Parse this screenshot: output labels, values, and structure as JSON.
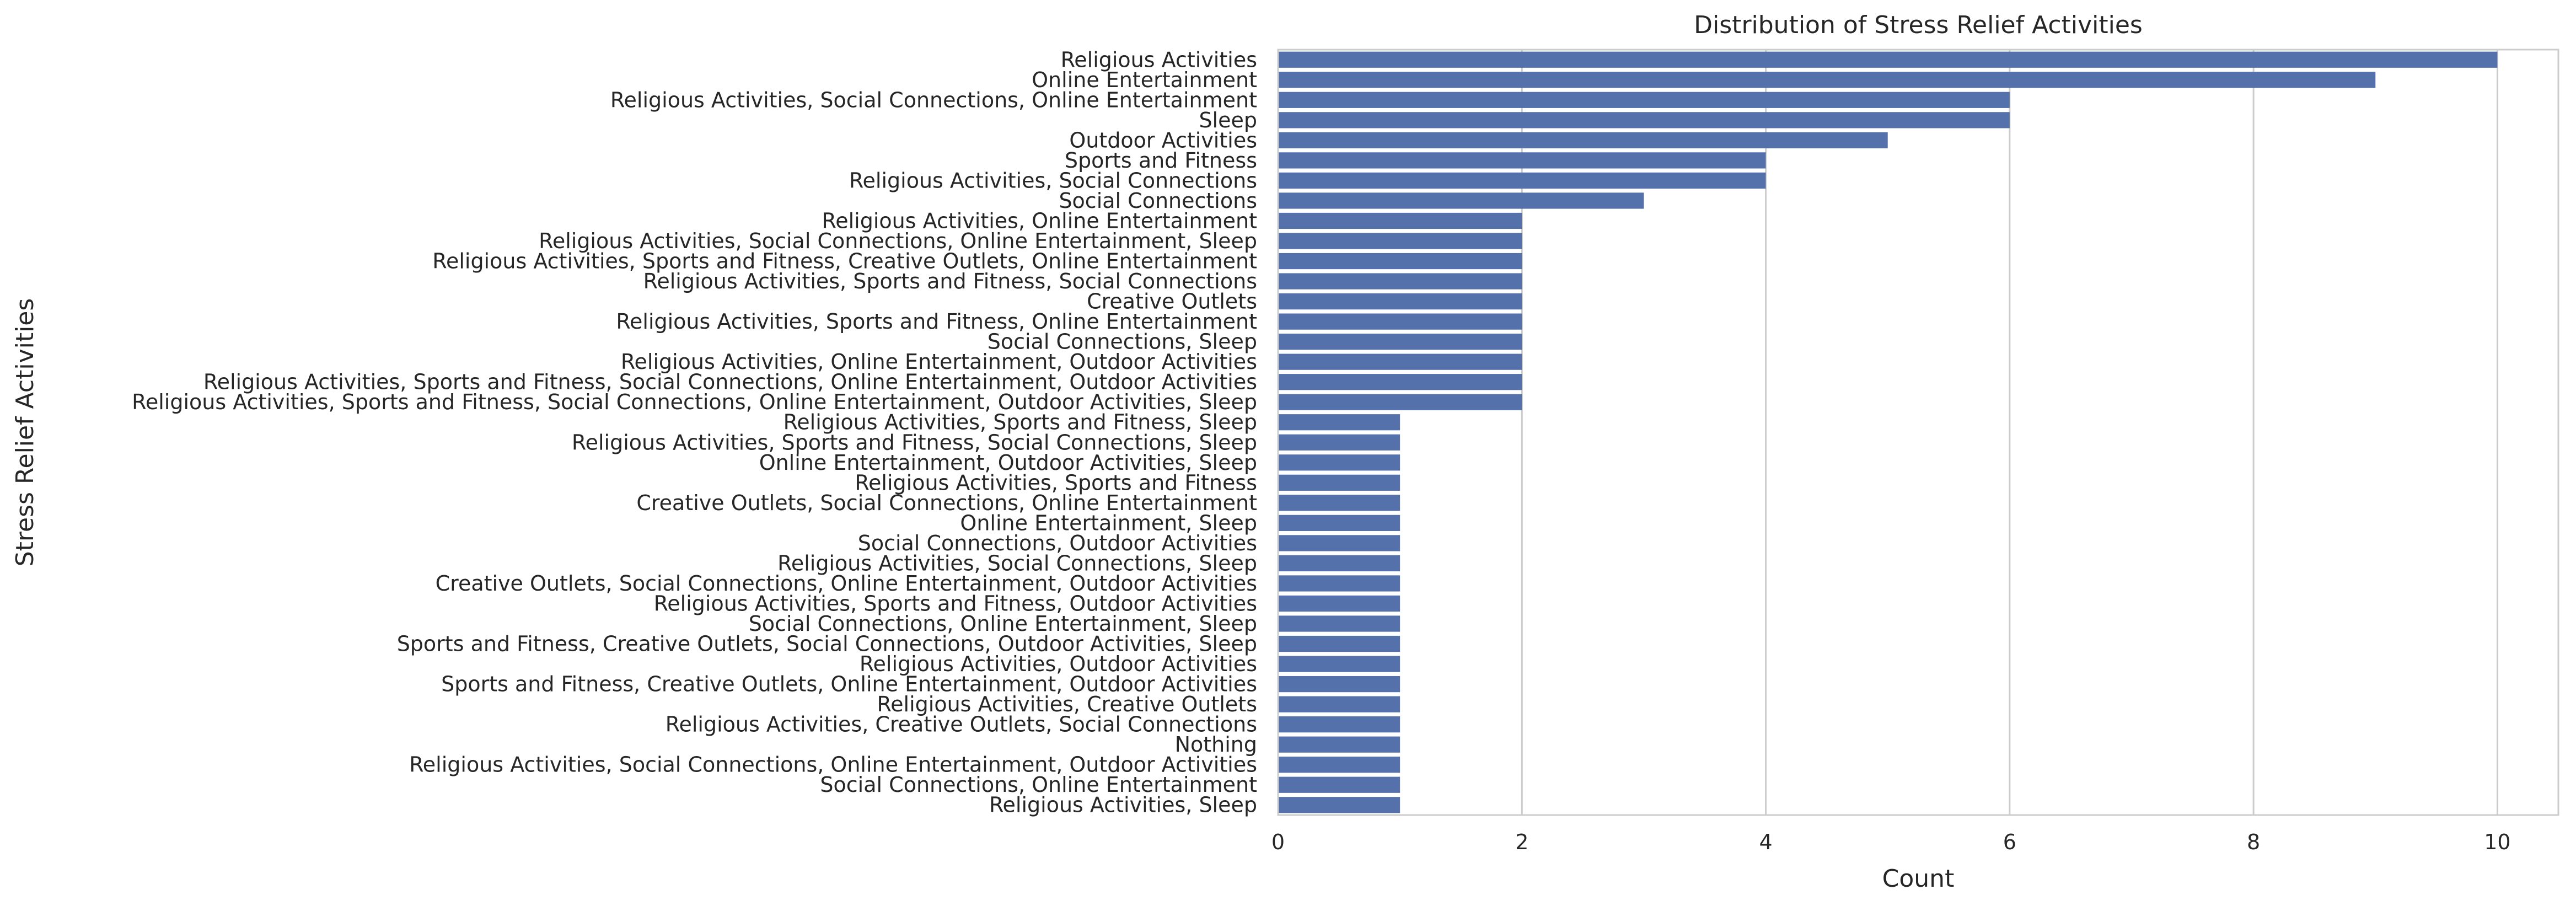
{
  "chart_data": {
    "type": "bar",
    "orientation": "horizontal",
    "title": "Distribution of Stress Relief Activities",
    "xlabel": "Count",
    "ylabel": "Stress Relief Activities",
    "xlim": [
      0,
      10.5
    ],
    "xticks": [
      0,
      2,
      4,
      6,
      8,
      10
    ],
    "grid": "vertical",
    "bar_color": "#5471ab",
    "categories": [
      "Religious Activities",
      "Online Entertainment",
      "Religious Activities, Social Connections, Online Entertainment",
      "Sleep",
      "Outdoor Activities",
      "Sports and Fitness",
      "Religious Activities, Social Connections",
      "Social Connections",
      "Religious Activities, Online Entertainment",
      "Religious Activities, Social Connections, Online Entertainment, Sleep",
      "Religious Activities, Sports and Fitness, Creative Outlets, Online Entertainment",
      "Religious Activities, Sports and Fitness, Social Connections",
      "Creative Outlets",
      "Religious Activities, Sports and Fitness, Online Entertainment",
      "Social Connections, Sleep",
      "Religious Activities, Online Entertainment, Outdoor Activities",
      "Religious Activities, Sports and Fitness, Social Connections, Online Entertainment, Outdoor Activities",
      "Religious Activities, Sports and Fitness, Social Connections, Online Entertainment, Outdoor Activities, Sleep",
      "Religious Activities, Sports and Fitness, Sleep",
      "Religious Activities, Sports and Fitness, Social Connections, Sleep",
      "Online Entertainment, Outdoor Activities, Sleep",
      "Religious Activities, Sports and Fitness",
      "Creative Outlets, Social Connections, Online Entertainment",
      "Online Entertainment, Sleep",
      "Social Connections, Outdoor Activities",
      "Religious Activities, Social Connections, Sleep",
      "Creative Outlets, Social Connections, Online Entertainment, Outdoor Activities",
      "Religious Activities, Sports and Fitness, Outdoor Activities",
      "Social Connections, Online Entertainment, Sleep",
      "Sports and Fitness, Creative Outlets, Social Connections, Outdoor Activities, Sleep",
      "Religious Activities, Outdoor Activities",
      "Sports and Fitness, Creative Outlets, Online Entertainment, Outdoor Activities",
      "Religious Activities, Creative Outlets",
      "Religious Activities, Creative Outlets, Social Connections",
      "Nothing",
      "Religious Activities, Social Connections, Online Entertainment, Outdoor Activities",
      "Social Connections, Online Entertainment",
      "Religious Activities, Sleep"
    ],
    "values": [
      10,
      9,
      6,
      6,
      5,
      4,
      4,
      3,
      2,
      2,
      2,
      2,
      2,
      2,
      2,
      2,
      2,
      2,
      1,
      1,
      1,
      1,
      1,
      1,
      1,
      1,
      1,
      1,
      1,
      1,
      1,
      1,
      1,
      1,
      1,
      1,
      1,
      1
    ]
  }
}
